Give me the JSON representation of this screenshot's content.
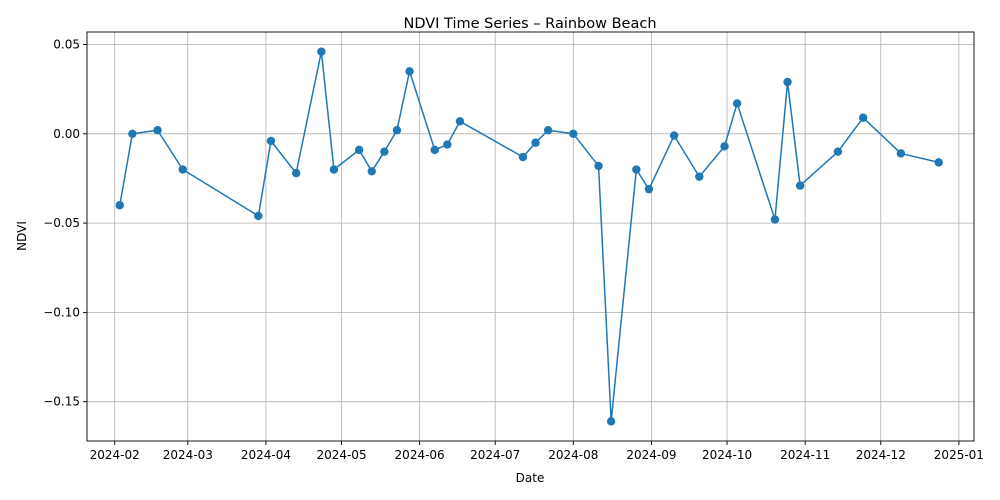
{
  "chart_data": {
    "type": "line",
    "title": "NDVI Time Series – Rainbow Beach",
    "xlabel": "Date",
    "ylabel": "NDVI",
    "xlim": [
      "2024-01-21",
      "2025-01-07"
    ],
    "ylim": [
      -0.172,
      0.057
    ],
    "xticks": [
      "2024-02-01",
      "2024-03-01",
      "2024-04-01",
      "2024-05-01",
      "2024-06-01",
      "2024-07-01",
      "2024-08-01",
      "2024-09-01",
      "2024-10-01",
      "2024-11-01",
      "2024-12-01",
      "2025-01-01"
    ],
    "xtick_labels": [
      "2024-02",
      "2024-03",
      "2024-04",
      "2024-05",
      "2024-06",
      "2024-07",
      "2024-08",
      "2024-09",
      "2024-10",
      "2024-11",
      "2024-12",
      "2025-01"
    ],
    "yticks": [
      0.05,
      0.0,
      -0.05,
      -0.1,
      -0.15
    ],
    "ytick_labels": [
      "0.05",
      "0.00",
      "−0.05",
      "−0.10",
      "−0.15"
    ],
    "grid": true,
    "color": "#1f77b4",
    "series": [
      {
        "marker": "circle",
        "x": [
          "2024-02-03",
          "2024-02-08",
          "2024-02-18",
          "2024-02-28",
          "2024-03-29",
          "2024-04-03",
          "2024-04-13",
          "2024-04-23",
          "2024-04-28",
          "2024-05-08",
          "2024-05-13",
          "2024-05-18",
          "2024-05-23",
          "2024-05-28",
          "2024-06-07",
          "2024-06-12",
          "2024-06-17",
          "2024-07-12",
          "2024-07-17",
          "2024-07-22",
          "2024-08-01",
          "2024-08-11",
          "2024-08-16",
          "2024-08-26",
          "2024-08-31",
          "2024-09-10",
          "2024-09-20",
          "2024-09-30",
          "2024-10-05",
          "2024-10-20",
          "2024-10-25",
          "2024-10-30",
          "2024-11-14",
          "2024-11-24",
          "2024-12-09",
          "2024-12-24"
        ],
        "y": [
          -0.04,
          0.0,
          0.002,
          -0.02,
          -0.046,
          -0.004,
          -0.022,
          0.046,
          -0.02,
          -0.009,
          -0.021,
          -0.01,
          0.002,
          0.035,
          -0.009,
          -0.006,
          0.007,
          -0.013,
          -0.005,
          0.002,
          0.0,
          -0.018,
          -0.161,
          -0.02,
          -0.031,
          -0.001,
          -0.024,
          -0.007,
          0.017,
          -0.048,
          0.029,
          -0.029,
          -0.01,
          0.009,
          -0.011,
          -0.016
        ]
      }
    ]
  }
}
